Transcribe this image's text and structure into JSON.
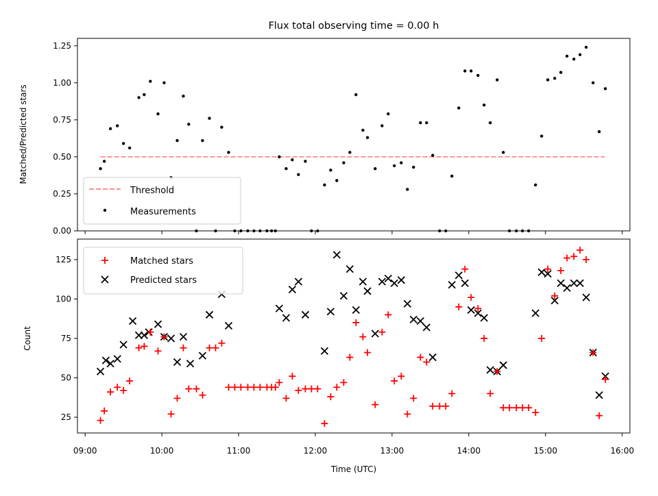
{
  "chart_data": [
    {
      "type": "scatter",
      "title": "Flux total observing time = 0.00 h",
      "xlabel": "",
      "ylabel": "Matched/Predicted stars",
      "ylim": [
        0,
        1.3
      ],
      "yticks": [
        "0.00",
        "0.25",
        "0.50",
        "0.75",
        "1.00",
        "1.25"
      ],
      "grid": false,
      "legend_position": "lower-left",
      "threshold": {
        "name": "Threshold",
        "value": 0.5,
        "x_range": [
          9.2,
          15.77
        ],
        "color": "#ff7f7f"
      },
      "series": [
        {
          "name": "Measurements",
          "color": "#000000",
          "x": [
            9.2,
            9.25,
            9.33,
            9.42,
            9.5,
            9.58,
            9.7,
            9.77,
            9.85,
            9.95,
            10.03,
            10.12,
            10.2,
            10.28,
            10.35,
            10.45,
            10.53,
            10.62,
            10.7,
            10.78,
            10.87,
            10.95,
            11.03,
            11.12,
            11.2,
            11.28,
            11.37,
            11.43,
            11.48,
            11.53,
            11.62,
            11.7,
            11.78,
            11.87,
            11.95,
            12.03,
            12.12,
            12.2,
            12.28,
            12.37,
            12.45,
            12.53,
            12.62,
            12.68,
            12.78,
            12.87,
            12.95,
            13.03,
            13.12,
            13.2,
            13.28,
            13.37,
            13.45,
            13.53,
            13.62,
            13.7,
            13.78,
            13.87,
            13.95,
            14.03,
            14.12,
            14.2,
            14.28,
            14.37,
            14.45,
            14.53,
            14.62,
            14.7,
            14.78,
            14.87,
            14.95,
            15.03,
            15.12,
            15.2,
            15.28,
            15.37,
            15.45,
            15.53,
            15.62,
            15.7,
            15.78
          ],
          "y": [
            0.42,
            0.47,
            0.69,
            0.71,
            0.59,
            0.56,
            0.9,
            0.92,
            1.01,
            0.79,
            1.0,
            0.36,
            0.61,
            0.91,
            0.72,
            0.0,
            0.61,
            0.76,
            0.0,
            0.7,
            0.53,
            0.0,
            0.0,
            0.0,
            0.0,
            0.0,
            0.0,
            0.0,
            0.0,
            0.5,
            0.42,
            0.48,
            0.38,
            0.47,
            0.0,
            0.0,
            0.31,
            0.41,
            0.34,
            0.46,
            0.53,
            0.92,
            0.68,
            0.63,
            0.42,
            0.71,
            0.79,
            0.44,
            0.46,
            0.28,
            0.43,
            0.73,
            0.73,
            0.51,
            0.0,
            0.0,
            0.37,
            0.83,
            1.08,
            1.08,
            1.05,
            0.85,
            0.73,
            1.02,
            0.53,
            0.0,
            0.0,
            0.0,
            0.0,
            0.31,
            0.64,
            1.02,
            1.03,
            1.07,
            1.18,
            1.16,
            1.19,
            1.24,
            1.0,
            0.67,
            0.96
          ]
        }
      ]
    },
    {
      "type": "scatter",
      "title": "",
      "xlabel": "Time (UTC)",
      "ylabel": "Count",
      "ylim": [
        15,
        138
      ],
      "yticks": [
        "25",
        "50",
        "75",
        "100",
        "125"
      ],
      "xlim": [
        8.9,
        16.1
      ],
      "xticks": [
        "09:00",
        "10:00",
        "11:00",
        "12:00",
        "13:00",
        "14:00",
        "15:00",
        "16:00"
      ],
      "grid": false,
      "legend_position": "upper-left",
      "series": [
        {
          "name": "Matched stars",
          "color": "#ff0000",
          "marker": "plus",
          "x": [
            9.2,
            9.25,
            9.33,
            9.42,
            9.5,
            9.58,
            9.7,
            9.77,
            9.85,
            9.95,
            10.03,
            10.12,
            10.2,
            10.28,
            10.35,
            10.45,
            10.53,
            10.62,
            10.7,
            10.78,
            10.87,
            10.95,
            11.03,
            11.12,
            11.2,
            11.28,
            11.37,
            11.43,
            11.48,
            11.53,
            11.62,
            11.7,
            11.78,
            11.87,
            11.95,
            12.03,
            12.12,
            12.2,
            12.28,
            12.37,
            12.45,
            12.53,
            12.62,
            12.68,
            12.78,
            12.87,
            12.95,
            13.03,
            13.12,
            13.2,
            13.28,
            13.37,
            13.45,
            13.53,
            13.62,
            13.7,
            13.78,
            13.87,
            13.95,
            14.03,
            14.12,
            14.2,
            14.28,
            14.37,
            14.45,
            14.53,
            14.62,
            14.7,
            14.78,
            14.87,
            14.95,
            15.03,
            15.12,
            15.2,
            15.28,
            15.37,
            15.45,
            15.53,
            15.62,
            15.7,
            15.78
          ],
          "y": [
            23,
            29,
            41,
            44,
            42,
            48,
            69,
            70,
            79,
            67,
            76,
            27,
            37,
            69,
            43,
            43,
            39,
            69,
            69,
            72,
            44,
            44,
            44,
            44,
            44,
            44,
            44,
            44,
            44,
            47,
            37,
            51,
            42,
            43,
            43,
            43,
            21,
            38,
            44,
            47,
            63,
            85,
            76,
            66,
            33,
            79,
            90,
            48,
            51,
            27,
            37,
            63,
            60,
            32,
            32,
            32,
            40,
            95,
            119,
            101,
            94,
            75,
            40,
            54,
            31,
            31,
            31,
            31,
            31,
            28,
            75,
            119,
            102,
            118,
            126,
            127,
            131,
            125,
            66,
            26,
            49
          ]
        },
        {
          "name": "Predicted stars",
          "color": "#000000",
          "marker": "x",
          "x": [
            9.2,
            9.27,
            9.33,
            9.42,
            9.5,
            9.62,
            9.7,
            9.77,
            9.83,
            9.95,
            10.03,
            10.12,
            10.2,
            10.28,
            10.37,
            10.53,
            10.62,
            10.78,
            10.87,
            11.53,
            11.62,
            11.7,
            11.78,
            11.87,
            12.12,
            12.2,
            12.28,
            12.37,
            12.45,
            12.53,
            12.62,
            12.68,
            12.78,
            12.87,
            12.95,
            13.03,
            13.12,
            13.2,
            13.28,
            13.37,
            13.45,
            13.53,
            13.78,
            13.87,
            13.95,
            14.03,
            14.12,
            14.2,
            14.28,
            14.37,
            14.45,
            14.87,
            14.95,
            15.03,
            15.12,
            15.2,
            15.28,
            15.37,
            15.45,
            15.53,
            15.62,
            15.7,
            15.78
          ],
          "y": [
            54,
            61,
            59,
            62,
            71,
            86,
            77,
            77,
            79,
            84,
            76,
            75,
            60,
            76,
            59,
            64,
            90,
            103,
            83,
            94,
            88,
            106,
            111,
            90,
            67,
            92,
            128,
            102,
            119,
            93,
            111,
            105,
            78,
            111,
            113,
            110,
            112,
            97,
            87,
            86,
            82,
            63,
            109,
            115,
            110,
            93,
            91,
            88,
            55,
            54,
            58,
            91,
            117,
            116,
            99,
            110,
            107,
            110,
            110,
            101,
            66,
            39,
            51
          ]
        }
      ]
    }
  ]
}
